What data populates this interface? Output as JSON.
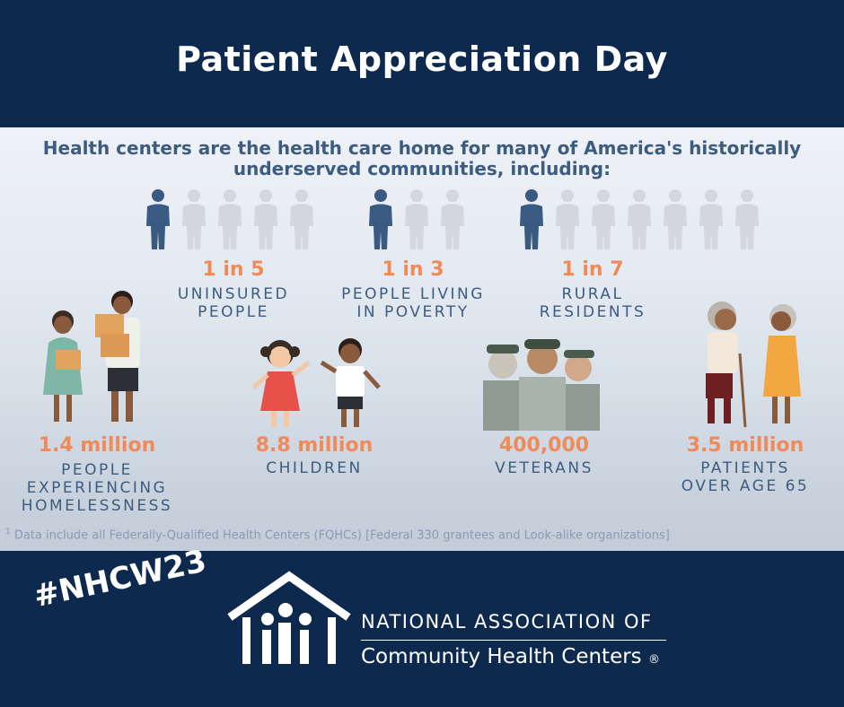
{
  "header": {
    "title": "Patient Appreciation Day"
  },
  "intro": {
    "text": "Health centers are the health care home for many of America's historically underserved communities, including:"
  },
  "ratio_stats": [
    {
      "value": "1 in 5",
      "label": "UNINSURED\nPEOPLE",
      "highlighted": 1,
      "total": 5
    },
    {
      "value": "1 in 3",
      "label": "PEOPLE LIVING\nIN POVERTY",
      "highlighted": 1,
      "total": 3
    },
    {
      "value": "1 in 7",
      "label": "RURAL\nRESIDENTS",
      "highlighted": 1,
      "total": 7
    }
  ],
  "count_stats": [
    {
      "value": "1.4 million",
      "label": "PEOPLE\nEXPERIENCING\nHOMELESSNESS"
    },
    {
      "value": "8.8 million",
      "label": "CHILDREN"
    },
    {
      "value": "400,000",
      "label": "VETERANS"
    },
    {
      "value": "3.5 million",
      "label": "PATIENTS\nOVER AGE 65"
    }
  ],
  "footnote": {
    "marker": "1",
    "text": "Data include all Federally-Qualified Health Centers (FQHCs) [Federal 330 grantees and Look-alike organizations]"
  },
  "footer": {
    "hashtag": "#NHCW23",
    "org_line1": "NATIONAL ASSOCIATION OF",
    "org_line2": "Community Health Centers",
    "registered": "®"
  },
  "colors": {
    "navy": "#0d2a4e",
    "accent_orange": "#ef8a5a",
    "text_blue": "#3e5b80",
    "person_active": "#3b5a82",
    "person_inactive": "#d3d7dc"
  },
  "icons": [
    "person-icon",
    "nachc-house-logo-icon"
  ]
}
